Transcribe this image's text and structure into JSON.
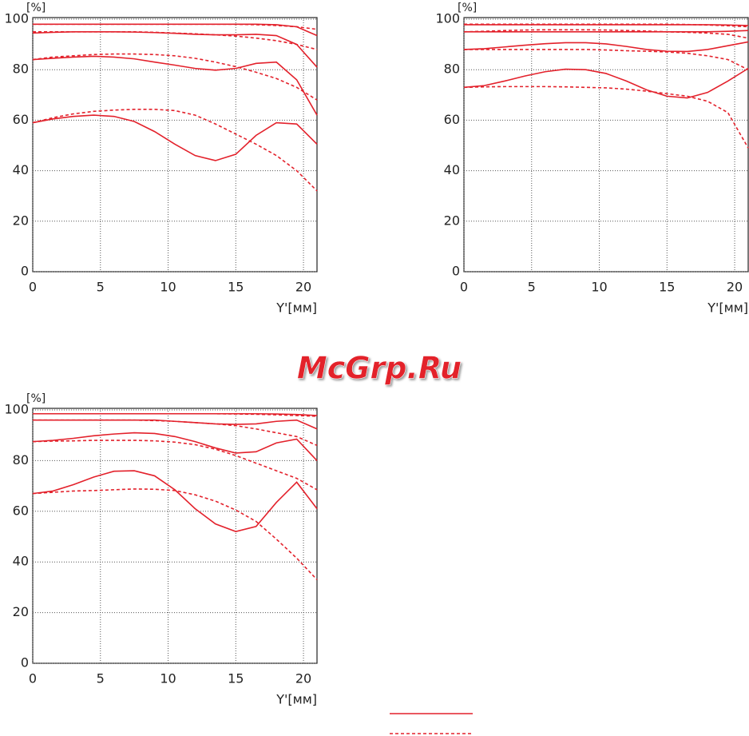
{
  "watermark": "McGrp.Ru",
  "chart_data": [
    {
      "type": "line",
      "x_label": "Y'[мм]",
      "y_label": "[%]",
      "xlim": [
        0,
        21
      ],
      "ylim": [
        0,
        100
      ],
      "xticks": [
        0,
        5,
        10,
        15,
        20
      ],
      "yticks": [
        0,
        20,
        40,
        60,
        80,
        100
      ],
      "grid": true,
      "x": [
        0,
        1.5,
        3,
        4.5,
        6,
        7.5,
        9,
        10.5,
        12,
        13.5,
        15,
        16.5,
        18,
        19.5,
        21
      ],
      "series": [
        {
          "color": "#e3212b",
          "dashed": false,
          "values": [
            98,
            98,
            98,
            98,
            98,
            98,
            98,
            98,
            98,
            98,
            98,
            98,
            97.8,
            97,
            93.5
          ]
        },
        {
          "color": "#e3212b",
          "dashed": false,
          "values": [
            94.5,
            94.8,
            95,
            95,
            95,
            94.9,
            94.7,
            94.4,
            94,
            93.8,
            93.8,
            94,
            93.5,
            90,
            81
          ]
        },
        {
          "color": "#e3212b",
          "dashed": false,
          "values": [
            84,
            84.5,
            85,
            85.3,
            85,
            84.3,
            83,
            81.8,
            80.5,
            79.8,
            80.5,
            82.5,
            83,
            76,
            62
          ]
        },
        {
          "color": "#e3212b",
          "dashed": false,
          "values": [
            59,
            60.5,
            61.5,
            62,
            61.5,
            59.5,
            55.5,
            50.5,
            46,
            44,
            46.5,
            54,
            59,
            58.5,
            50.5
          ]
        },
        {
          "color": "#e3212b",
          "dashed": true,
          "values": [
            98,
            98,
            98,
            98,
            98,
            98,
            98,
            98,
            98,
            98,
            98,
            97.8,
            97.5,
            97,
            96
          ]
        },
        {
          "color": "#e3212b",
          "dashed": true,
          "values": [
            95,
            95,
            95,
            95,
            95,
            95,
            94.8,
            94.5,
            94.2,
            93.8,
            93.3,
            92.5,
            91.5,
            90,
            88
          ]
        },
        {
          "color": "#e3212b",
          "dashed": true,
          "values": [
            84,
            85,
            85.5,
            86,
            86.2,
            86.2,
            86,
            85.5,
            84.5,
            83,
            81.2,
            79,
            76.5,
            73,
            68
          ]
        },
        {
          "color": "#e3212b",
          "dashed": true,
          "values": [
            59,
            61,
            62.5,
            63.5,
            64,
            64.3,
            64.3,
            63.8,
            62,
            58.5,
            54.5,
            50.5,
            46,
            40,
            32
          ]
        }
      ]
    },
    {
      "type": "line",
      "x_label": "Y'[мм]",
      "y_label": "[%]",
      "xlim": [
        0,
        21
      ],
      "ylim": [
        0,
        100
      ],
      "xticks": [
        0,
        5,
        10,
        15,
        20
      ],
      "yticks": [
        0,
        20,
        40,
        60,
        80,
        100
      ],
      "grid": true,
      "x": [
        0,
        1.5,
        3,
        4.5,
        6,
        7.5,
        9,
        10.5,
        12,
        13.5,
        15,
        16.5,
        18,
        19.5,
        21
      ],
      "series": [
        {
          "color": "#e3212b",
          "dashed": false,
          "values": [
            97.8,
            97.8,
            97.8,
            97.8,
            97.8,
            97.8,
            97.8,
            97.8,
            97.8,
            97.8,
            97.8,
            97.8,
            97.8,
            97.7,
            97.5
          ]
        },
        {
          "color": "#e3212b",
          "dashed": false,
          "values": [
            95,
            95,
            95,
            95,
            95,
            95,
            95,
            95,
            95,
            95,
            95,
            95,
            95,
            95.2,
            95.5
          ]
        },
        {
          "color": "#e3212b",
          "dashed": false,
          "values": [
            88,
            88.3,
            89,
            89.7,
            90.3,
            90.7,
            90.7,
            90.2,
            89.2,
            88,
            87.3,
            87.2,
            88,
            89.5,
            91
          ]
        },
        {
          "color": "#e3212b",
          "dashed": false,
          "values": [
            73,
            73.7,
            75.5,
            77.5,
            79.2,
            80.2,
            80,
            78.5,
            75.5,
            72,
            69.5,
            68.8,
            71,
            75.5,
            80.5
          ]
        },
        {
          "color": "#e3212b",
          "dashed": true,
          "values": [
            98,
            98,
            98,
            98,
            98,
            98,
            98,
            98,
            98,
            98,
            98,
            97.9,
            97.7,
            97.4,
            97
          ]
        },
        {
          "color": "#e3212b",
          "dashed": true,
          "values": [
            95,
            95.2,
            95.5,
            95.7,
            95.8,
            95.8,
            95.8,
            95.7,
            95.5,
            95.3,
            95,
            94.8,
            94.5,
            94,
            92.5
          ]
        },
        {
          "color": "#e3212b",
          "dashed": true,
          "values": [
            88,
            88,
            88,
            88,
            88,
            88,
            88,
            87.8,
            87.5,
            87.3,
            87,
            86.5,
            85.5,
            84,
            80
          ]
        },
        {
          "color": "#e3212b",
          "dashed": true,
          "values": [
            73,
            73.2,
            73.3,
            73.3,
            73.3,
            73.2,
            73,
            72.8,
            72.3,
            71.5,
            70.5,
            69.5,
            67.5,
            63,
            49
          ]
        }
      ]
    },
    {
      "type": "line",
      "x_label": "Y'[мм]",
      "y_label": "[%]",
      "xlim": [
        0,
        21
      ],
      "ylim": [
        0,
        100
      ],
      "xticks": [
        0,
        5,
        10,
        15,
        20
      ],
      "yticks": [
        0,
        20,
        40,
        60,
        80,
        100
      ],
      "grid": true,
      "x": [
        0,
        1.5,
        3,
        4.5,
        6,
        7.5,
        9,
        10.5,
        12,
        13.5,
        15,
        16.5,
        18,
        19.5,
        21
      ],
      "series": [
        {
          "color": "#e3212b",
          "dashed": false,
          "values": [
            98.5,
            98.5,
            98.5,
            98.5,
            98.5,
            98.5,
            98.5,
            98.5,
            98.5,
            98.5,
            98.5,
            98.5,
            98.4,
            98.2,
            97.8
          ]
        },
        {
          "color": "#e3212b",
          "dashed": false,
          "values": [
            96,
            96,
            96,
            96,
            96,
            96,
            96,
            95.5,
            95,
            94.5,
            94.3,
            94.5,
            95.5,
            96,
            92.5
          ]
        },
        {
          "color": "#e3212b",
          "dashed": false,
          "values": [
            87.5,
            88,
            88.8,
            89.8,
            90.5,
            91,
            90.7,
            89.5,
            87.5,
            85,
            83,
            83.5,
            87,
            88.5,
            80
          ]
        },
        {
          "color": "#e3212b",
          "dashed": false,
          "values": [
            67,
            68,
            70.5,
            73.5,
            75.8,
            76,
            74,
            68.5,
            61,
            55,
            52,
            54,
            63.5,
            71.5,
            61
          ]
        },
        {
          "color": "#e3212b",
          "dashed": true,
          "values": [
            98.5,
            98.5,
            98.5,
            98.5,
            98.5,
            98.5,
            98.5,
            98.5,
            98.5,
            98.5,
            98.4,
            98.3,
            98.1,
            97.8,
            97.5
          ]
        },
        {
          "color": "#e3212b",
          "dashed": true,
          "values": [
            96,
            96,
            96,
            96,
            96,
            96,
            95.8,
            95.5,
            95,
            94.5,
            93.8,
            92.5,
            91,
            89.5,
            86
          ]
        },
        {
          "color": "#e3212b",
          "dashed": true,
          "values": [
            87.5,
            87.7,
            87.8,
            88,
            88,
            88,
            87.8,
            87.3,
            86.3,
            84.5,
            82,
            79,
            76,
            73,
            68.5
          ]
        },
        {
          "color": "#e3212b",
          "dashed": true,
          "values": [
            67,
            67.5,
            68,
            68.2,
            68.5,
            68.8,
            68.7,
            68.2,
            66.5,
            64,
            60.5,
            56,
            49,
            41.5,
            33
          ]
        }
      ]
    }
  ]
}
